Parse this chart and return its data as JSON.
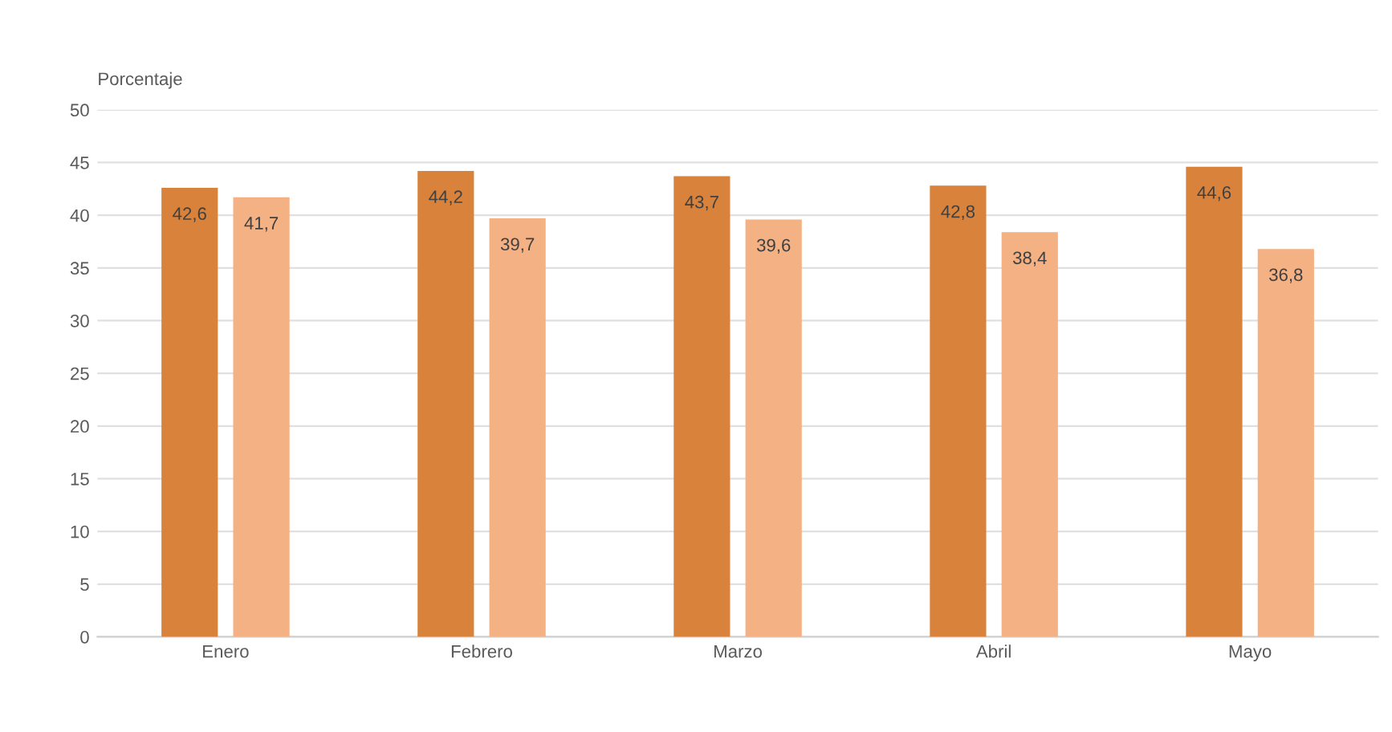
{
  "chart_data": {
    "type": "bar",
    "ylabel": "Porcentaje",
    "categories": [
      "Enero",
      "Febrero",
      "Marzo",
      "Abril",
      "Mayo"
    ],
    "series": [
      {
        "color": "#d9823b",
        "values": [
          42.6,
          44.2,
          43.7,
          42.8,
          44.6
        ],
        "value_labels": [
          "42,6",
          "44,2",
          "43,7",
          "42,8",
          "44,6"
        ]
      },
      {
        "color": "#f4b183",
        "values": [
          41.7,
          39.7,
          39.6,
          38.4,
          36.8
        ],
        "value_labels": [
          "41,7",
          "39,7",
          "39,6",
          "38,4",
          "36,8"
        ]
      }
    ],
    "ylim": [
      0,
      50
    ],
    "yticks": [
      0,
      5,
      10,
      15,
      20,
      25,
      30,
      35,
      40,
      45,
      50
    ],
    "grid": "y"
  }
}
